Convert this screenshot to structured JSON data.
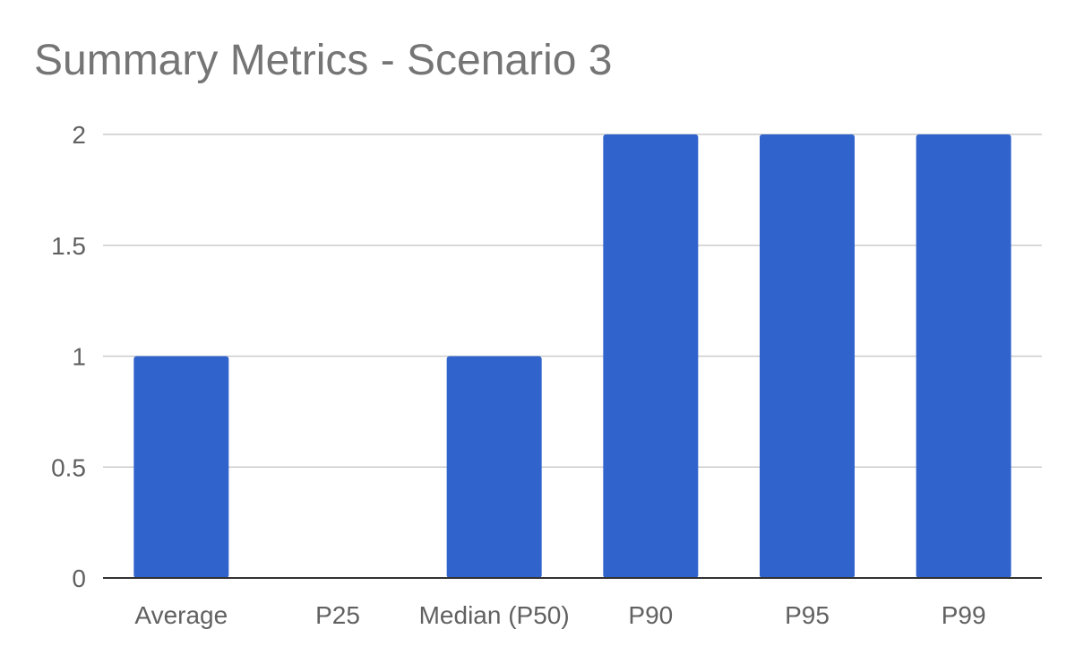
{
  "chart_data": {
    "type": "bar",
    "title": "Summary Metrics - Scenario 3",
    "xlabel": "",
    "ylabel": "",
    "categories": [
      "Average",
      "P25",
      "Median (P50)",
      "P90",
      "P95",
      "P99"
    ],
    "series": [
      {
        "values": [
          1,
          0,
          1,
          2,
          2,
          2
        ]
      }
    ],
    "ylim": [
      0,
      2
    ],
    "yticks": [
      "0",
      "0.5",
      "1",
      "1.5",
      "2"
    ],
    "grid": true,
    "legend": "none",
    "colors": {
      "bar": "#3063cc",
      "grid": "#cccccc",
      "axis": "#333333",
      "tick_label": "#616161",
      "title": "#757575"
    }
  }
}
